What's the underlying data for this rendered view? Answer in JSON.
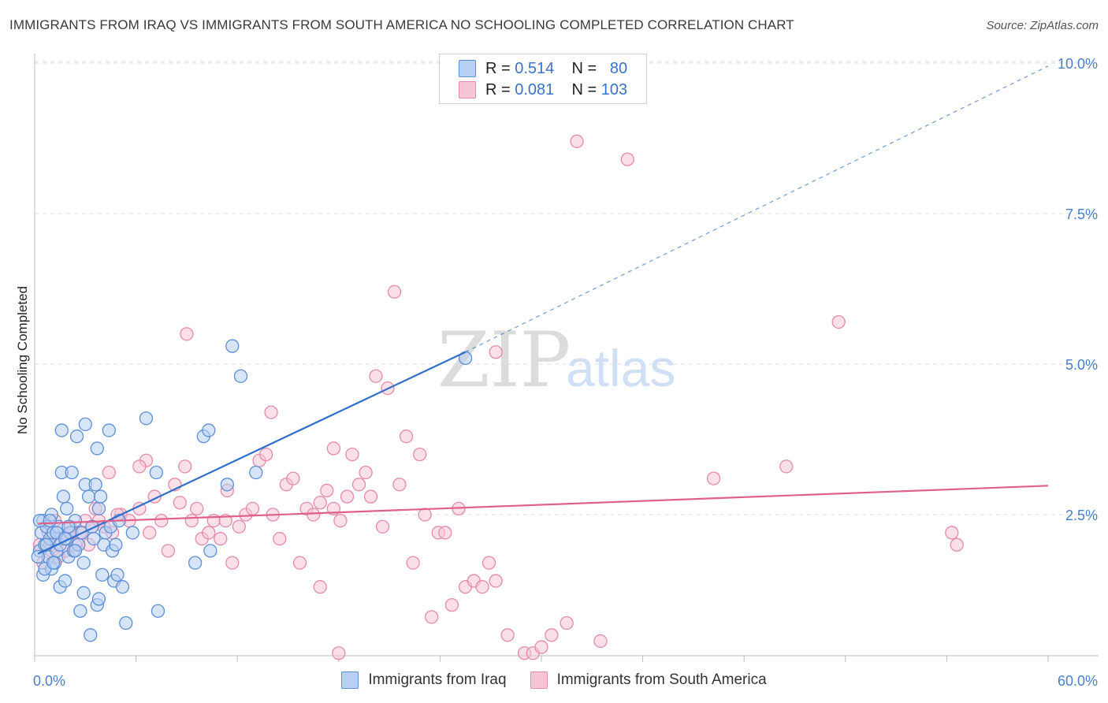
{
  "title": "IMMIGRANTS FROM IRAQ VS IMMIGRANTS FROM SOUTH AMERICA NO SCHOOLING COMPLETED CORRELATION CHART",
  "source": "Source: ZipAtlas.com",
  "watermark": {
    "zip": "ZIP",
    "atlas": "atlas"
  },
  "legend": {
    "series1": {
      "r_label": "R =",
      "r_value": "0.514",
      "n_label": "N =",
      "n_value": "80"
    },
    "series2": {
      "r_label": "R =",
      "r_value": "0.081",
      "n_label": "N =",
      "n_value": "103"
    }
  },
  "chart_data": {
    "type": "scatter",
    "title": "IMMIGRANTS FROM IRAQ VS IMMIGRANTS FROM SOUTH AMERICA NO SCHOOLING COMPLETED CORRELATION CHART",
    "xlabel": "",
    "ylabel": "No Schooling Completed",
    "xlim": [
      0,
      60
    ],
    "ylim": [
      0,
      10.5
    ],
    "x_tick_labels": [
      "0.0%",
      "60.0%"
    ],
    "y_ticks": [
      2.5,
      5.0,
      7.5,
      10.0
    ],
    "y_tick_labels": [
      "2.5%",
      "5.0%",
      "7.5%",
      "10.0%"
    ],
    "grid": true,
    "legend_position": "top-center",
    "colors": {
      "iraq": "#5b8fd8",
      "iraq_fill": "#b8d0f3",
      "iraq_line": "#2f6fcc",
      "sa": "#e58aaa",
      "sa_fill": "#f7c6d6",
      "sa_line": "#e0608c"
    },
    "series": [
      {
        "name": "Immigrants from Iraq",
        "trend": {
          "x": [
            0.2,
            25.5,
            60
          ],
          "y": [
            1.85,
            5.2,
            9.95
          ]
        },
        "points": [
          [
            0.3,
            1.9
          ],
          [
            0.4,
            2.2
          ],
          [
            0.5,
            2.4
          ],
          [
            0.5,
            1.5
          ],
          [
            0.6,
            2.0
          ],
          [
            0.7,
            2.3
          ],
          [
            0.8,
            1.8
          ],
          [
            0.9,
            2.1
          ],
          [
            1.0,
            2.5
          ],
          [
            1.0,
            1.6
          ],
          [
            1.1,
            2.2
          ],
          [
            1.2,
            1.7
          ],
          [
            1.3,
            1.9
          ],
          [
            1.4,
            2.3
          ],
          [
            1.5,
            1.3
          ],
          [
            1.5,
            2.0
          ],
          [
            1.6,
            3.9
          ],
          [
            1.6,
            3.2
          ],
          [
            1.7,
            2.8
          ],
          [
            1.8,
            1.4
          ],
          [
            1.9,
            2.6
          ],
          [
            1.9,
            2.1
          ],
          [
            2.0,
            1.8
          ],
          [
            2.1,
            2.2
          ],
          [
            2.2,
            3.2
          ],
          [
            2.3,
            1.9
          ],
          [
            2.4,
            2.4
          ],
          [
            2.5,
            3.8
          ],
          [
            2.6,
            2.0
          ],
          [
            2.7,
            0.9
          ],
          [
            2.8,
            2.2
          ],
          [
            2.9,
            1.7
          ],
          [
            3.0,
            3.0
          ],
          [
            3.0,
            4.0
          ],
          [
            3.2,
            2.8
          ],
          [
            3.3,
            0.5
          ],
          [
            3.4,
            2.3
          ],
          [
            3.5,
            2.1
          ],
          [
            3.6,
            3.0
          ],
          [
            3.7,
            1.0
          ],
          [
            3.7,
            3.6
          ],
          [
            3.8,
            2.6
          ],
          [
            3.9,
            2.8
          ],
          [
            4.0,
            1.5
          ],
          [
            4.1,
            2.0
          ],
          [
            4.2,
            2.2
          ],
          [
            4.4,
            3.9
          ],
          [
            4.5,
            2.3
          ],
          [
            4.6,
            1.9
          ],
          [
            4.7,
            1.4
          ],
          [
            4.8,
            2.0
          ],
          [
            5.0,
            2.4
          ],
          [
            5.2,
            1.3
          ],
          [
            5.4,
            0.7
          ],
          [
            5.8,
            2.2
          ],
          [
            6.6,
            4.1
          ],
          [
            7.2,
            3.2
          ],
          [
            7.3,
            0.9
          ],
          [
            9.5,
            1.7
          ],
          [
            10.0,
            3.8
          ],
          [
            10.3,
            3.9
          ],
          [
            10.4,
            1.9
          ],
          [
            11.4,
            3.0
          ],
          [
            11.7,
            5.3
          ],
          [
            12.2,
            4.8
          ],
          [
            13.1,
            3.2
          ],
          [
            25.5,
            5.1
          ],
          [
            0.2,
            1.8
          ],
          [
            0.3,
            2.4
          ],
          [
            0.6,
            1.6
          ],
          [
            0.7,
            2.0
          ],
          [
            0.9,
            2.4
          ],
          [
            1.1,
            1.7
          ],
          [
            1.3,
            2.2
          ],
          [
            1.8,
            2.1
          ],
          [
            2.0,
            2.3
          ],
          [
            2.4,
            1.9
          ],
          [
            2.9,
            1.2
          ],
          [
            3.8,
            1.1
          ],
          [
            4.9,
            1.5
          ]
        ]
      },
      {
        "name": "Immigrants from South America",
        "trend": {
          "x": [
            0.2,
            60
          ],
          "y": [
            2.35,
            2.98
          ]
        },
        "points": [
          [
            0.3,
            2.0
          ],
          [
            0.5,
            1.7
          ],
          [
            0.8,
            2.2
          ],
          [
            1.0,
            1.9
          ],
          [
            1.2,
            2.4
          ],
          [
            1.5,
            2.1
          ],
          [
            1.8,
            1.9
          ],
          [
            2.1,
            2.3
          ],
          [
            2.4,
            2.0
          ],
          [
            2.7,
            2.2
          ],
          [
            3.0,
            2.4
          ],
          [
            3.2,
            2.0
          ],
          [
            3.6,
            2.6
          ],
          [
            3.8,
            2.4
          ],
          [
            4.1,
            2.3
          ],
          [
            4.4,
            3.2
          ],
          [
            4.6,
            2.2
          ],
          [
            5.1,
            2.5
          ],
          [
            5.6,
            2.4
          ],
          [
            6.2,
            2.6
          ],
          [
            6.6,
            3.4
          ],
          [
            6.8,
            2.2
          ],
          [
            7.1,
            2.8
          ],
          [
            7.5,
            2.4
          ],
          [
            7.9,
            1.9
          ],
          [
            8.3,
            3.0
          ],
          [
            8.6,
            2.7
          ],
          [
            8.9,
            3.3
          ],
          [
            9.3,
            2.4
          ],
          [
            9.6,
            2.6
          ],
          [
            9.9,
            2.1
          ],
          [
            10.3,
            2.2
          ],
          [
            10.6,
            2.4
          ],
          [
            11.0,
            2.1
          ],
          [
            11.4,
            2.9
          ],
          [
            11.7,
            1.7
          ],
          [
            12.1,
            2.3
          ],
          [
            12.5,
            2.5
          ],
          [
            12.9,
            2.6
          ],
          [
            13.3,
            3.4
          ],
          [
            13.7,
            3.5
          ],
          [
            14.1,
            2.5
          ],
          [
            14.5,
            2.1
          ],
          [
            14.9,
            3.0
          ],
          [
            15.3,
            3.1
          ],
          [
            15.7,
            1.7
          ],
          [
            16.1,
            2.6
          ],
          [
            16.5,
            2.5
          ],
          [
            16.9,
            2.7
          ],
          [
            17.3,
            2.9
          ],
          [
            17.7,
            2.6
          ],
          [
            18.1,
            2.4
          ],
          [
            18.5,
            2.8
          ],
          [
            18.8,
            3.5
          ],
          [
            19.2,
            3.0
          ],
          [
            19.6,
            3.2
          ],
          [
            19.9,
            2.8
          ],
          [
            20.2,
            4.8
          ],
          [
            20.6,
            2.3
          ],
          [
            20.9,
            4.6
          ],
          [
            21.3,
            6.2
          ],
          [
            21.6,
            3.0
          ],
          [
            22.0,
            3.8
          ],
          [
            22.4,
            1.7
          ],
          [
            22.8,
            3.5
          ],
          [
            23.1,
            2.5
          ],
          [
            23.5,
            0.8
          ],
          [
            23.9,
            2.2
          ],
          [
            24.3,
            2.2
          ],
          [
            24.7,
            1.0
          ],
          [
            25.1,
            2.6
          ],
          [
            25.5,
            1.3
          ],
          [
            26.0,
            1.4
          ],
          [
            26.5,
            1.3
          ],
          [
            26.9,
            1.7
          ],
          [
            27.3,
            1.4
          ],
          [
            28.0,
            0.5
          ],
          [
            29.0,
            0.2
          ],
          [
            29.5,
            0.2
          ],
          [
            30.0,
            0.3
          ],
          [
            30.6,
            0.5
          ],
          [
            31.5,
            0.7
          ],
          [
            32.1,
            8.7
          ],
          [
            33.5,
            0.4
          ],
          [
            35.1,
            8.4
          ],
          [
            40.2,
            3.1
          ],
          [
            44.5,
            3.3
          ],
          [
            47.6,
            5.7
          ],
          [
            54.3,
            2.2
          ],
          [
            54.6,
            2.0
          ],
          [
            9.0,
            5.5
          ],
          [
            6.2,
            3.3
          ],
          [
            14.0,
            4.2
          ],
          [
            11.3,
            2.4
          ],
          [
            17.7,
            3.6
          ],
          [
            0.9,
            2.0
          ],
          [
            1.4,
            1.8
          ],
          [
            2.2,
            2.2
          ],
          [
            3.4,
            2.3
          ],
          [
            4.9,
            2.5
          ],
          [
            27.3,
            5.2
          ],
          [
            18.0,
            0.2
          ],
          [
            16.9,
            1.3
          ]
        ]
      }
    ]
  },
  "x_axis_left_label": "0.0%",
  "x_axis_right_label": "60.0%",
  "bottom_legend": {
    "iraq": "Immigrants from Iraq",
    "sa": "Immigrants from South America"
  }
}
